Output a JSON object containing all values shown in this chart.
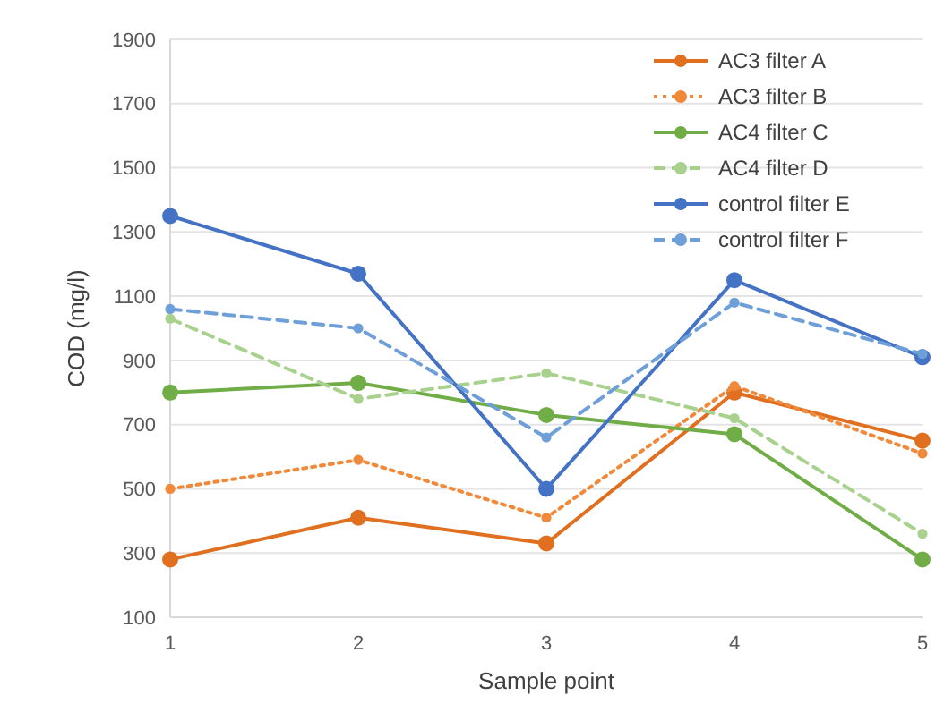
{
  "chart_data": {
    "type": "line",
    "xlabel": "Sample point",
    "ylabel": "COD (mg/l)",
    "x": [
      1,
      2,
      3,
      4,
      5
    ],
    "xlim": [
      1,
      5
    ],
    "xticks": [
      1,
      2,
      3,
      4,
      5
    ],
    "ylim": [
      100,
      1900
    ],
    "yticks": [
      100,
      300,
      500,
      700,
      900,
      1100,
      1300,
      1500,
      1700,
      1900
    ],
    "grid": "y",
    "legend": "top right",
    "marker": "circle",
    "series": [
      {
        "name": "AC3 filter A",
        "color": "#e07020",
        "line_style": "solid",
        "values": [
          280,
          410,
          330,
          800,
          650
        ]
      },
      {
        "name": "AC3 filter B",
        "color": "#f0893a",
        "line_style": "dotted",
        "values": [
          500,
          590,
          410,
          820,
          610
        ]
      },
      {
        "name": "AC4 filter C",
        "color": "#70ad47",
        "line_style": "solid",
        "values": [
          800,
          830,
          730,
          670,
          280
        ]
      },
      {
        "name": "AC4 filter D",
        "color": "#a9d18e",
        "line_style": "dashed",
        "values": [
          1030,
          780,
          860,
          720,
          360
        ]
      },
      {
        "name": "control filter E",
        "color": "#4472c4",
        "line_style": "solid",
        "values": [
          1350,
          1170,
          500,
          1150,
          910
        ]
      },
      {
        "name": "control filter F",
        "color": "#6f9fd8",
        "line_style": "dashed",
        "values": [
          1060,
          1000,
          660,
          1080,
          920
        ]
      }
    ]
  }
}
